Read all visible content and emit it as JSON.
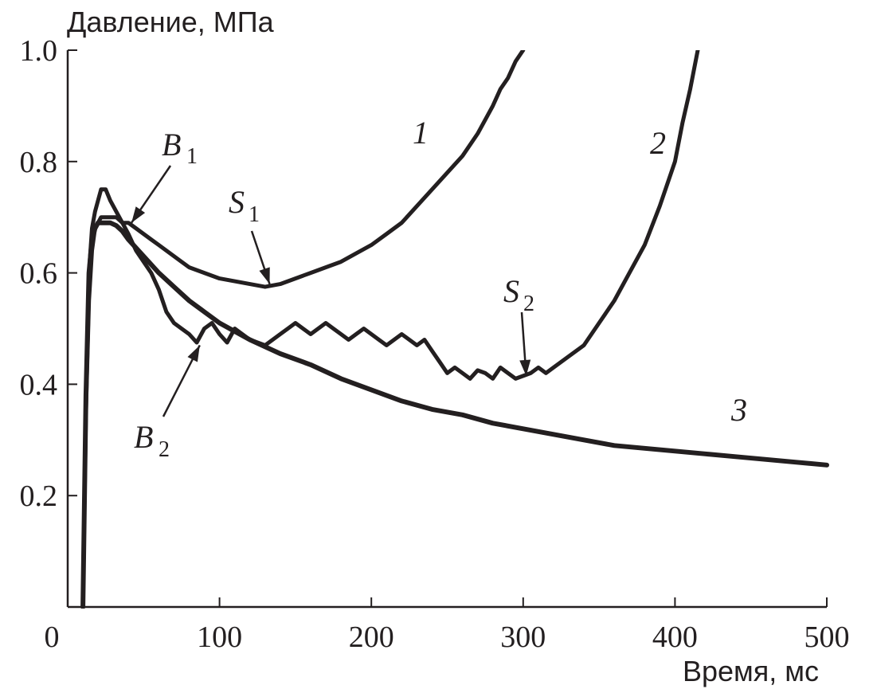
{
  "chart_data": {
    "type": "line",
    "title": "",
    "xlabel": "Время, мс",
    "ylabel": "Давление, МПа",
    "xlim": [
      0,
      500
    ],
    "ylim": [
      0,
      1.0
    ],
    "x_ticks": [
      0,
      100,
      200,
      300,
      400,
      500
    ],
    "y_ticks": [
      0.2,
      0.4,
      0.6,
      0.8,
      1.0
    ],
    "x_tick_labels": [
      "0",
      "100",
      "200",
      "300",
      "400",
      "500"
    ],
    "y_tick_labels": [
      "0.2",
      "0.4",
      "0.6",
      "0.8",
      "1.0"
    ],
    "grid": false,
    "line_color": "#231f20",
    "series": [
      {
        "name": "1",
        "x": [
          10,
          12,
          14,
          16,
          18,
          20,
          22,
          25,
          28,
          32,
          36,
          40,
          45,
          50,
          55,
          60,
          65,
          70,
          75,
          80,
          85,
          90,
          100,
          110,
          120,
          130,
          140,
          150,
          160,
          170,
          180,
          190,
          200,
          210,
          220,
          230,
          240,
          250,
          260,
          270,
          280,
          285,
          290,
          295,
          300
        ],
        "y": [
          0.0,
          0.35,
          0.55,
          0.64,
          0.68,
          0.69,
          0.7,
          0.7,
          0.7,
          0.7,
          0.69,
          0.69,
          0.68,
          0.67,
          0.66,
          0.65,
          0.64,
          0.63,
          0.62,
          0.61,
          0.605,
          0.6,
          0.59,
          0.585,
          0.58,
          0.575,
          0.58,
          0.59,
          0.6,
          0.61,
          0.62,
          0.635,
          0.65,
          0.67,
          0.69,
          0.72,
          0.75,
          0.78,
          0.81,
          0.85,
          0.9,
          0.93,
          0.95,
          0.98,
          1.0
        ]
      },
      {
        "name": "2",
        "x": [
          10,
          12,
          14,
          16,
          18,
          20,
          22,
          25,
          28,
          32,
          36,
          40,
          45,
          50,
          55,
          60,
          65,
          70,
          75,
          80,
          85,
          90,
          95,
          100,
          105,
          110,
          115,
          120,
          125,
          130,
          135,
          140,
          145,
          150,
          155,
          160,
          165,
          170,
          175,
          180,
          185,
          190,
          195,
          200,
          205,
          210,
          215,
          220,
          225,
          230,
          235,
          240,
          245,
          250,
          255,
          260,
          265,
          270,
          275,
          280,
          285,
          290,
          295,
          300,
          305,
          310,
          315,
          320,
          330,
          340,
          350,
          360,
          370,
          380,
          390,
          400,
          405,
          410,
          415
        ],
        "y": [
          0.0,
          0.38,
          0.6,
          0.68,
          0.71,
          0.73,
          0.75,
          0.75,
          0.73,
          0.71,
          0.69,
          0.67,
          0.64,
          0.62,
          0.6,
          0.57,
          0.53,
          0.51,
          0.5,
          0.49,
          0.475,
          0.5,
          0.51,
          0.49,
          0.475,
          0.5,
          0.49,
          0.48,
          0.475,
          0.47,
          0.48,
          0.49,
          0.5,
          0.51,
          0.5,
          0.49,
          0.5,
          0.51,
          0.5,
          0.49,
          0.48,
          0.49,
          0.5,
          0.49,
          0.48,
          0.47,
          0.48,
          0.49,
          0.48,
          0.47,
          0.48,
          0.46,
          0.44,
          0.42,
          0.43,
          0.42,
          0.41,
          0.425,
          0.42,
          0.41,
          0.43,
          0.42,
          0.41,
          0.415,
          0.42,
          0.43,
          0.42,
          0.43,
          0.45,
          0.47,
          0.51,
          0.55,
          0.6,
          0.65,
          0.72,
          0.8,
          0.87,
          0.93,
          1.0
        ]
      },
      {
        "name": "3",
        "x": [
          10,
          12,
          14,
          16,
          18,
          20,
          22,
          25,
          28,
          32,
          36,
          40,
          50,
          60,
          70,
          80,
          90,
          100,
          120,
          140,
          160,
          180,
          200,
          220,
          240,
          260,
          280,
          300,
          320,
          340,
          360,
          380,
          400,
          420,
          440,
          460,
          480,
          500
        ],
        "y": [
          0.0,
          0.38,
          0.6,
          0.66,
          0.68,
          0.69,
          0.69,
          0.69,
          0.69,
          0.685,
          0.675,
          0.66,
          0.63,
          0.6,
          0.575,
          0.55,
          0.53,
          0.51,
          0.48,
          0.455,
          0.435,
          0.41,
          0.39,
          0.37,
          0.355,
          0.345,
          0.33,
          0.32,
          0.31,
          0.3,
          0.29,
          0.285,
          0.28,
          0.275,
          0.27,
          0.265,
          0.26,
          0.255
        ]
      }
    ],
    "annotations": [
      {
        "label": "B",
        "sub": "1",
        "x": 42,
        "y": 0.69
      },
      {
        "label": "S",
        "sub": "1",
        "x": 133,
        "y": 0.58
      },
      {
        "label": "S",
        "sub": "2",
        "x": 302,
        "y": 0.415
      },
      {
        "label": "B",
        "sub": "2",
        "x": 87,
        "y": 0.47
      }
    ]
  }
}
